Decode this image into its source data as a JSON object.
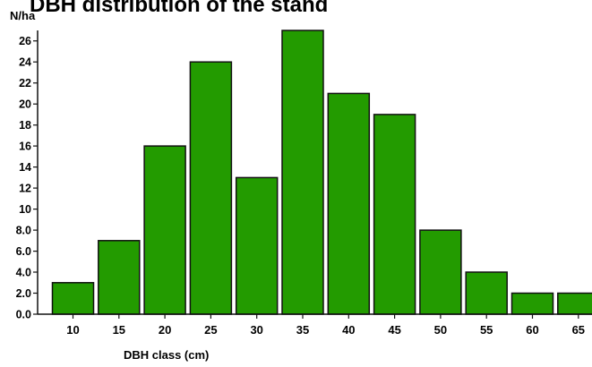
{
  "chart_data": {
    "type": "bar",
    "title": "DBH distribution of the stand",
    "xlabel": "DBH class (cm)",
    "ylabel": "N/ha",
    "categories": [
      "10",
      "15",
      "20",
      "25",
      "30",
      "35",
      "40",
      "45",
      "50",
      "55",
      "60",
      "65"
    ],
    "values": [
      3,
      7,
      16,
      24,
      13,
      27,
      21,
      19,
      8,
      4,
      2,
      2
    ],
    "ylim": [
      0,
      27
    ],
    "yticks": [
      0,
      2,
      4,
      6,
      8,
      10,
      12,
      14,
      16,
      18,
      20,
      22,
      24,
      26
    ],
    "ytick_labels": [
      "0.0",
      "2.0",
      "4.0",
      "6.0",
      "8.0",
      "10",
      "12",
      "14",
      "16",
      "18",
      "20",
      "22",
      "24",
      "26"
    ],
    "bar_color": "#239b00",
    "bar_edge_color": "#111111",
    "grid": false,
    "legend": "none"
  }
}
